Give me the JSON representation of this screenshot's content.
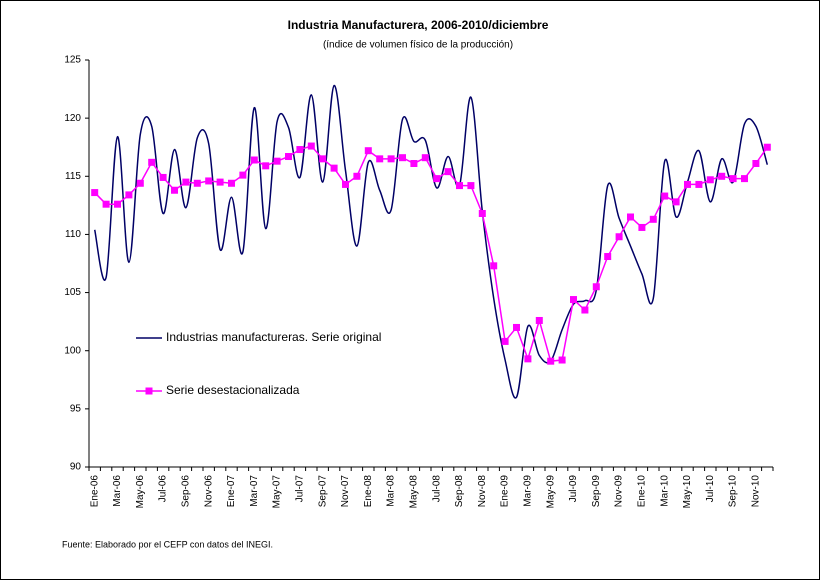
{
  "chart_data": {
    "type": "line",
    "title": "Industria Manufacturera, 2006-2010/diciembre",
    "subtitle": "(índice de volumen físico de la producción)",
    "source": "Fuente: Elaborado por el CEFP con datos del INEGI.",
    "categories": [
      "Ene-06",
      null,
      "Mar-06",
      null,
      "May-06",
      null,
      "Jul-06",
      null,
      "Sep-06",
      null,
      "Nov-06",
      null,
      "Ene-07",
      null,
      "Mar-07",
      null,
      "May-07",
      null,
      "Jul-07",
      null,
      "Sep-07",
      null,
      "Nov-07",
      null,
      "Ene-08",
      null,
      "Mar-08",
      null,
      "May-08",
      null,
      "Jul-08",
      null,
      "Sep-08",
      null,
      "Nov-08",
      null,
      "Ene-09",
      null,
      "Mar-09",
      null,
      "May-09",
      null,
      "Jul-09",
      null,
      "Sep-09",
      null,
      "Nov-09",
      null,
      "Ene-10",
      null,
      "Mar-10",
      null,
      "May-10",
      null,
      "Jul-10",
      null,
      "Sep-10",
      null,
      "Nov-10",
      null
    ],
    "series": [
      {
        "name": "Industrias manufactureras. Serie original",
        "color": "#000066",
        "smooth": true,
        "marker": false,
        "values": [
          110.4,
          106.3,
          118.4,
          107.6,
          118.6,
          119.3,
          111.8,
          117.3,
          112.3,
          118.3,
          117.8,
          108.7,
          113.2,
          108.5,
          120.9,
          110.5,
          119.7,
          119.2,
          114.9,
          122.0,
          114.5,
          122.8,
          115.5,
          109.0,
          116.2,
          113.8,
          112.1,
          119.9,
          118.0,
          118.1,
          114.0,
          116.7,
          114.2,
          121.8,
          112.0,
          104.5,
          99.2,
          96.0,
          102.1,
          99.6,
          99.1,
          101.8,
          104.0,
          104.3,
          105.2,
          114.2,
          111.4,
          109.0,
          106.6,
          104.5,
          116.3,
          111.5,
          114.5,
          117.2,
          112.8,
          116.5,
          114.5,
          119.5,
          119.3,
          116.0
        ]
      },
      {
        "name": "Serie desestacionalizada",
        "color": "#ff00ff",
        "smooth": false,
        "marker": true,
        "values": [
          113.6,
          112.6,
          112.6,
          113.4,
          114.4,
          116.2,
          114.9,
          113.8,
          114.5,
          114.4,
          114.6,
          114.5,
          114.4,
          115.1,
          116.4,
          115.9,
          116.3,
          116.7,
          117.3,
          117.6,
          116.5,
          115.7,
          114.3,
          115.0,
          117.2,
          116.5,
          116.5,
          116.6,
          116.1,
          116.6,
          114.8,
          115.4,
          114.2,
          114.2,
          111.8,
          107.3,
          100.8,
          102.0,
          99.3,
          102.6,
          99.1,
          99.2,
          104.4,
          103.5,
          105.5,
          108.1,
          109.8,
          111.5,
          110.6,
          111.3,
          113.3,
          112.8,
          114.3,
          114.3,
          114.7,
          115.0,
          114.8,
          114.8,
          116.1,
          117.5
        ]
      }
    ],
    "ylim": [
      90,
      125
    ],
    "yticks": [
      90,
      95,
      100,
      105,
      110,
      115,
      120,
      125
    ],
    "grid": false,
    "legend": "left"
  }
}
